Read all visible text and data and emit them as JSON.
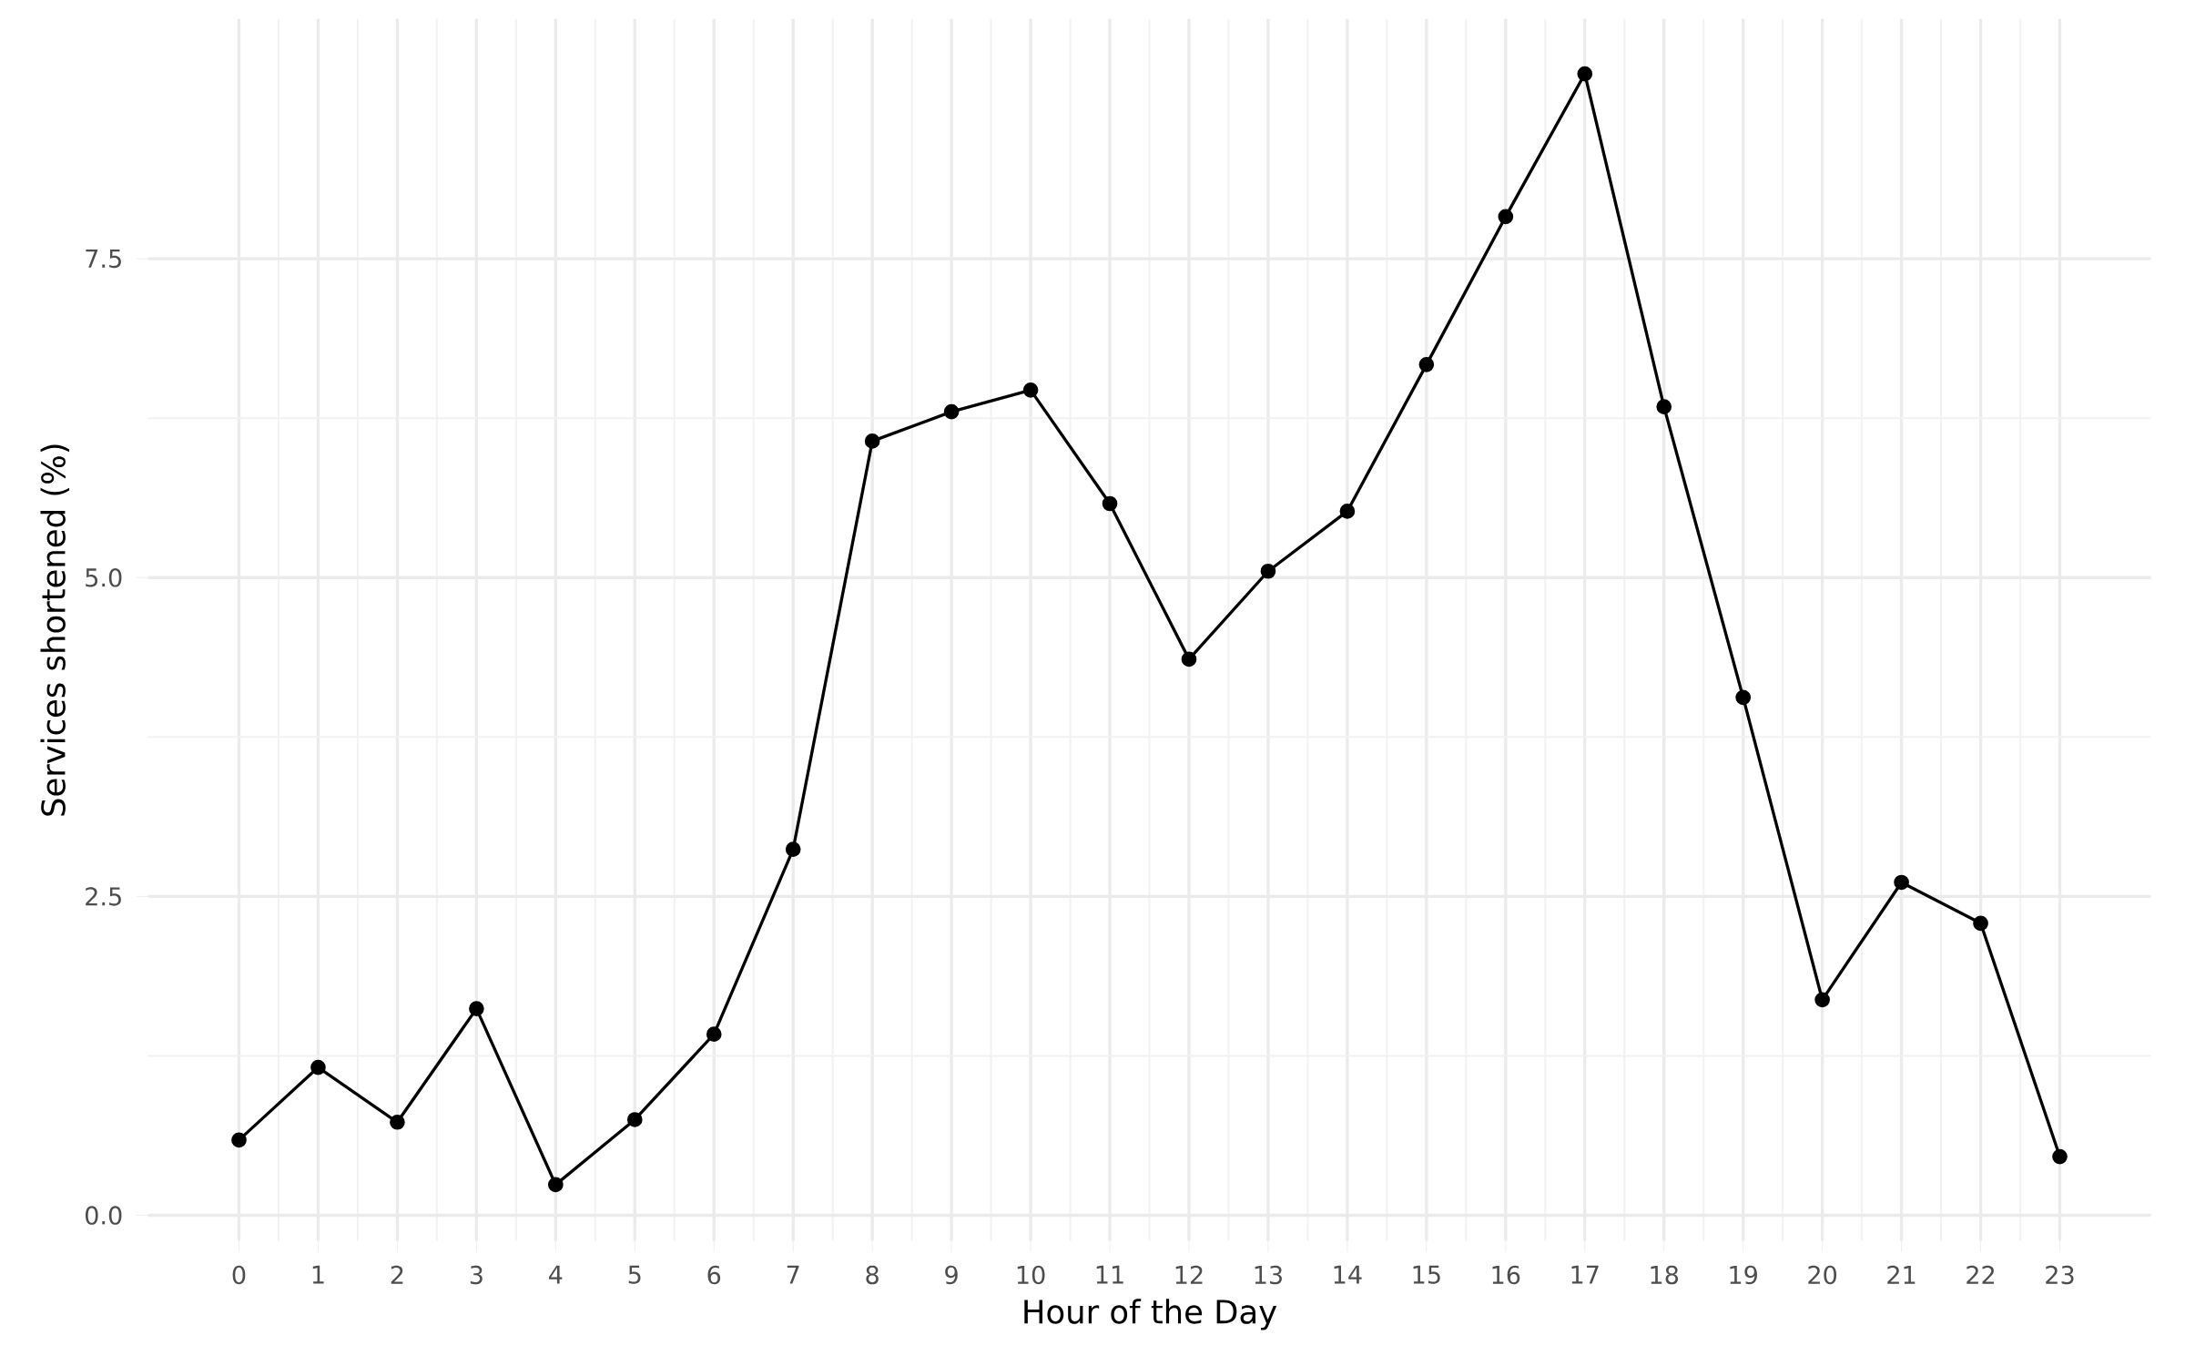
{
  "chart_data": {
    "type": "line",
    "xlabel": "Hour of the Day",
    "ylabel": "Services shortened (%)",
    "x": [
      0,
      1,
      2,
      3,
      4,
      5,
      6,
      7,
      8,
      9,
      10,
      11,
      12,
      13,
      14,
      15,
      16,
      17,
      18,
      19,
      20,
      21,
      22,
      23
    ],
    "series": [
      {
        "color": "#000000",
        "values": [
          0.59,
          1.16,
          0.73,
          1.62,
          0.24,
          0.75,
          1.42,
          2.87,
          6.07,
          6.3,
          6.47,
          5.58,
          4.36,
          5.05,
          5.52,
          6.67,
          7.83,
          8.95,
          6.34,
          4.06,
          1.69,
          2.61,
          2.29,
          0.46
        ]
      }
    ],
    "xlim": [
      -1.15,
      24.15
    ],
    "ylim": [
      -0.2,
      9.38
    ],
    "xticks": [
      0,
      1,
      2,
      3,
      4,
      5,
      6,
      7,
      8,
      9,
      10,
      11,
      12,
      13,
      14,
      15,
      16,
      17,
      18,
      19,
      20,
      21,
      22,
      23
    ],
    "yticks": [
      {
        "value": 0,
        "label": "0.0"
      },
      2.5,
      {
        "value": 5,
        "label": "5.0"
      },
      7.5
    ],
    "marker": "circle",
    "line_style": "solid",
    "grid": true
  }
}
